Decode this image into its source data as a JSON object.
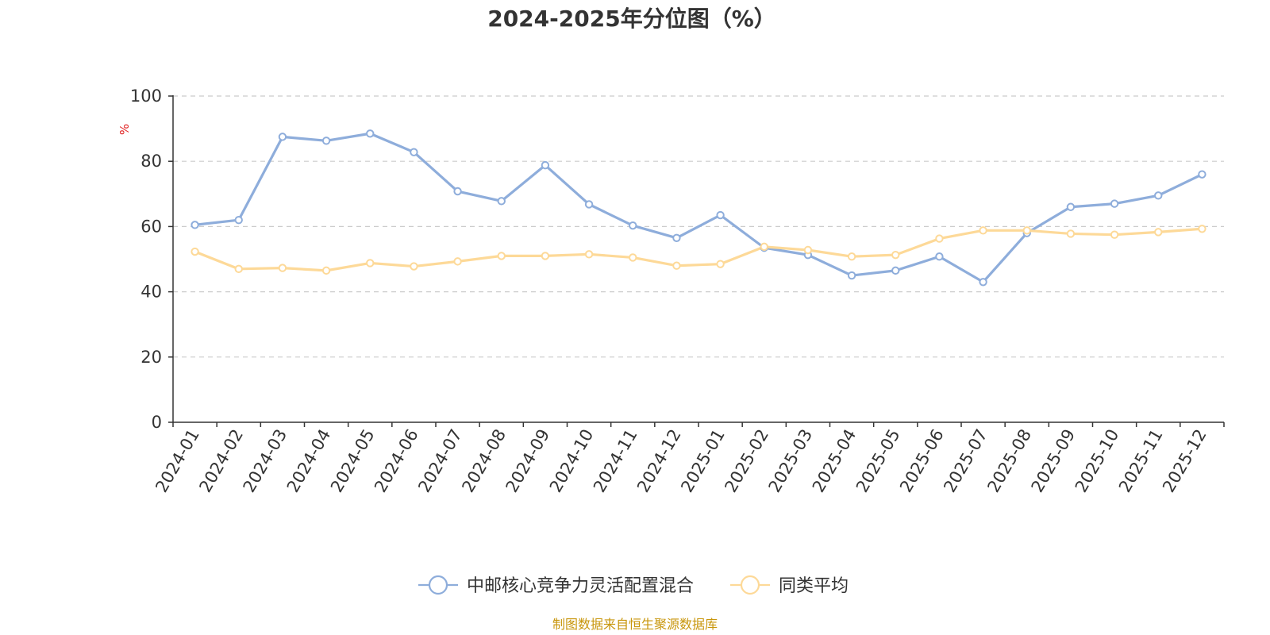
{
  "chart_data": {
    "type": "line",
    "title": "2024-2025年分位图（%）",
    "ylabel": "%",
    "ylim": [
      0,
      100
    ],
    "yticks": [
      0,
      20,
      40,
      60,
      80,
      100
    ],
    "grid": true,
    "legend_position": "bottom-center",
    "categories": [
      "2024-01",
      "2024-02",
      "2024-03",
      "2024-04",
      "2024-05",
      "2024-06",
      "2024-07",
      "2024-08",
      "2024-09",
      "2024-10",
      "2024-11",
      "2024-12",
      "2025-01",
      "2025-02",
      "2025-03",
      "2025-04",
      "2025-05",
      "2025-06",
      "2025-07",
      "2025-08",
      "2025-09",
      "2025-10",
      "2025-11",
      "2025-12"
    ],
    "series": [
      {
        "name": "中邮核心竞争力灵活配置混合",
        "color": "#8eaddb",
        "values": [
          60.5,
          62.0,
          87.5,
          86.3,
          88.5,
          82.8,
          70.8,
          67.8,
          78.8,
          66.8,
          60.3,
          56.5,
          63.5,
          53.5,
          51.3,
          45.0,
          46.5,
          50.8,
          43.0,
          58.0,
          66.0,
          67.0,
          69.5,
          76.0
        ]
      },
      {
        "name": "同类平均",
        "color": "#fdd998",
        "values": [
          52.3,
          47.0,
          47.3,
          46.5,
          48.8,
          47.8,
          49.3,
          51.0,
          51.0,
          51.5,
          50.5,
          48.0,
          48.5,
          53.8,
          52.8,
          50.8,
          51.3,
          56.3,
          58.8,
          58.8,
          57.8,
          57.5,
          58.3,
          59.3
        ]
      }
    ]
  },
  "colors": {
    "axis": "#333333",
    "grid": "#cccccc",
    "ylabel": "#e02020",
    "source": "#c8960c"
  },
  "source": "制图数据来自恒生聚源数据库"
}
